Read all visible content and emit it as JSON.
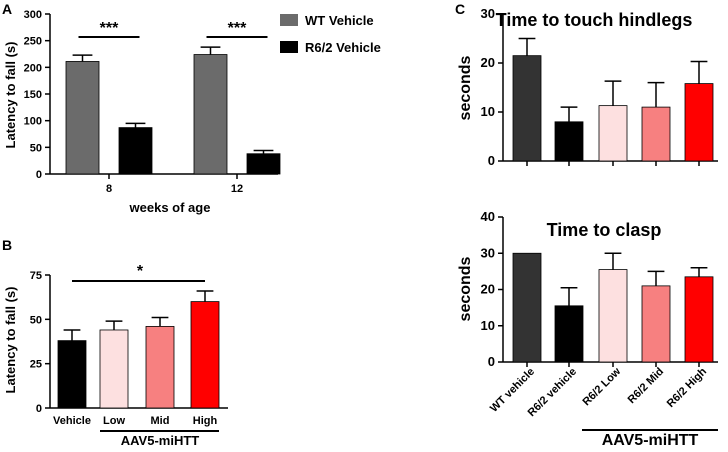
{
  "chart_data": [
    {
      "id": "A",
      "type": "bar",
      "panel_label": "A",
      "title": "",
      "xlabel": "weeks of age",
      "ylabel": "Latency to fall (s)",
      "ylim": [
        0,
        300
      ],
      "yticks": [
        0,
        50,
        100,
        150,
        200,
        250,
        300
      ],
      "categories": [
        "8",
        "12"
      ],
      "series": [
        {
          "name": "WT Vehicle",
          "color": "#6b6b6b",
          "values": [
            211,
            224
          ],
          "errors": [
            12,
            14
          ]
        },
        {
          "name": "R6/2 Vehicle",
          "color": "#000000",
          "values": [
            87,
            38
          ],
          "errors": [
            8,
            6
          ]
        }
      ],
      "significance": [
        {
          "label": "***",
          "category": "8"
        },
        {
          "label": "***",
          "category": "12"
        }
      ],
      "legend": "top-right"
    },
    {
      "id": "B",
      "type": "bar",
      "panel_label": "B",
      "title": "",
      "xlabel": "",
      "ylabel": "Latency to fall (s)",
      "ylim": [
        0,
        75
      ],
      "yticks": [
        0,
        25,
        50,
        75
      ],
      "categories": [
        "Vehicle",
        "Low",
        "Mid",
        "High"
      ],
      "colors": [
        "#000000",
        "#fde0e0",
        "#f78080",
        "#ff0000"
      ],
      "values": [
        38,
        44,
        46,
        60
      ],
      "errors": [
        6,
        5,
        5,
        6
      ],
      "group_label": "AAV5-miHTT",
      "significance": [
        {
          "label": "*",
          "from": "Vehicle",
          "to": "High"
        }
      ]
    },
    {
      "id": "C1",
      "type": "bar",
      "panel_label": "C",
      "title": "Time to touch hindlegs",
      "xlabel": "",
      "ylabel": "seconds",
      "ylim": [
        0,
        30
      ],
      "yticks": [
        0,
        10,
        20,
        30
      ],
      "categories": [
        "WT vehicle",
        "R6/2 vehicle",
        "R6/2 Low",
        "R6/2 Mid",
        "R6/2 High"
      ],
      "colors": [
        "#333333",
        "#000000",
        "#fde0e0",
        "#f78080",
        "#ff0000"
      ],
      "values": [
        21.5,
        8,
        11.3,
        11,
        15.8
      ],
      "errors": [
        3.5,
        3,
        5,
        5,
        4.5
      ]
    },
    {
      "id": "C2",
      "type": "bar",
      "title": "Time to clasp",
      "xlabel": "",
      "ylabel": "seconds",
      "ylim": [
        0,
        40
      ],
      "yticks": [
        0,
        10,
        20,
        30,
        40
      ],
      "categories": [
        "WT vehicle",
        "R6/2 vehicle",
        "R6/2 Low",
        "R6/2 Mid",
        "R6/2 High"
      ],
      "colors": [
        "#333333",
        "#000000",
        "#fde0e0",
        "#f78080",
        "#ff0000"
      ],
      "values": [
        30,
        15.5,
        25.5,
        21,
        23.5
      ],
      "errors": [
        0,
        5,
        4.5,
        4,
        2.5
      ],
      "group_label": "AAV5-miHTT"
    }
  ]
}
